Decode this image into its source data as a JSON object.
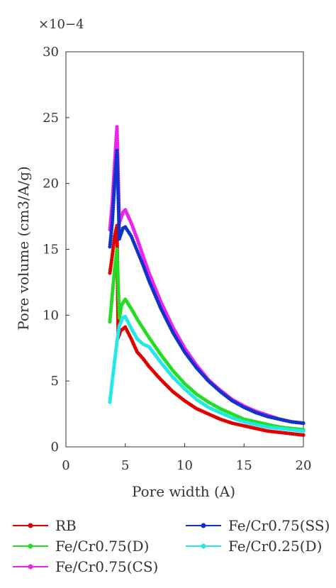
{
  "chart_data": {
    "type": "scatter",
    "title": "",
    "xlabel": "Pore width (A)",
    "ylabel": "Pore volume (cm3/A/g)",
    "multiplier": "×10−4",
    "xlim": [
      0,
      20
    ],
    "ylim": [
      0,
      30
    ],
    "x_ticks": [
      0,
      5,
      10,
      15,
      20
    ],
    "y_ticks": [
      0,
      5,
      10,
      15,
      20,
      25,
      30
    ],
    "grid": false,
    "legend_position": "bottom",
    "series": [
      {
        "name": "RB",
        "color": "#e00000",
        "points": [
          [
            3.7,
            13.2
          ],
          [
            3.9,
            14.5
          ],
          [
            4.1,
            16.0
          ],
          [
            4.3,
            16.8
          ],
          [
            4.4,
            8.3
          ],
          [
            4.6,
            8.8
          ],
          [
            5.0,
            9.1
          ],
          [
            5.5,
            8.2
          ],
          [
            6.0,
            7.2
          ],
          [
            6.5,
            6.7
          ],
          [
            7.0,
            6.1
          ],
          [
            8.0,
            5.1
          ],
          [
            9.0,
            4.2
          ],
          [
            10.0,
            3.5
          ],
          [
            11.0,
            2.9
          ],
          [
            12.0,
            2.5
          ],
          [
            13.0,
            2.1
          ],
          [
            14.0,
            1.8
          ],
          [
            15.0,
            1.6
          ],
          [
            16.0,
            1.4
          ],
          [
            17.0,
            1.2
          ],
          [
            18.0,
            1.1
          ],
          [
            19.0,
            1.0
          ],
          [
            20.0,
            0.9
          ]
        ]
      },
      {
        "name": "Fe/Cr0.75(D)",
        "color": "#22dd22",
        "points": [
          [
            3.7,
            9.5
          ],
          [
            3.9,
            11.5
          ],
          [
            4.1,
            13.5
          ],
          [
            4.3,
            15.0
          ],
          [
            4.5,
            9.8
          ],
          [
            4.7,
            10.8
          ],
          [
            5.0,
            11.2
          ],
          [
            5.5,
            10.5
          ],
          [
            6.0,
            9.7
          ],
          [
            6.5,
            9.0
          ],
          [
            7.0,
            8.3
          ],
          [
            8.0,
            7.0
          ],
          [
            9.0,
            5.8
          ],
          [
            10.0,
            4.8
          ],
          [
            11.0,
            4.0
          ],
          [
            12.0,
            3.4
          ],
          [
            13.0,
            2.9
          ],
          [
            14.0,
            2.5
          ],
          [
            15.0,
            2.1
          ],
          [
            16.0,
            1.9
          ],
          [
            17.0,
            1.7
          ],
          [
            18.0,
            1.5
          ],
          [
            19.0,
            1.4
          ],
          [
            20.0,
            1.3
          ]
        ]
      },
      {
        "name": "Fe/Cr0.75(CS)",
        "color": "#ee22ee",
        "points": [
          [
            3.7,
            16.5
          ],
          [
            3.9,
            18.5
          ],
          [
            4.1,
            21.5
          ],
          [
            4.3,
            24.3
          ],
          [
            4.5,
            17.0
          ],
          [
            4.8,
            17.8
          ],
          [
            5.0,
            18.0
          ],
          [
            5.5,
            17.0
          ],
          [
            6.0,
            15.8
          ],
          [
            6.5,
            14.5
          ],
          [
            7.0,
            13.2
          ],
          [
            8.0,
            11.0
          ],
          [
            9.0,
            9.1
          ],
          [
            10.0,
            7.5
          ],
          [
            11.0,
            6.2
          ],
          [
            12.0,
            5.1
          ],
          [
            13.0,
            4.3
          ],
          [
            14.0,
            3.6
          ],
          [
            15.0,
            3.1
          ],
          [
            16.0,
            2.7
          ],
          [
            17.0,
            2.4
          ],
          [
            18.0,
            2.1
          ],
          [
            19.0,
            1.9
          ],
          [
            20.0,
            1.8
          ]
        ]
      },
      {
        "name": "Fe/Cr0.75(SS)",
        "color": "#1133cc",
        "points": [
          [
            3.7,
            15.2
          ],
          [
            3.9,
            17.0
          ],
          [
            4.1,
            20.0
          ],
          [
            4.3,
            22.5
          ],
          [
            4.5,
            15.8
          ],
          [
            4.8,
            16.6
          ],
          [
            5.0,
            16.7
          ],
          [
            5.5,
            16.0
          ],
          [
            6.0,
            14.9
          ],
          [
            6.5,
            13.8
          ],
          [
            7.0,
            12.6
          ],
          [
            8.0,
            10.5
          ],
          [
            9.0,
            8.7
          ],
          [
            10.0,
            7.2
          ],
          [
            11.0,
            6.0
          ],
          [
            12.0,
            5.0
          ],
          [
            13.0,
            4.2
          ],
          [
            14.0,
            3.5
          ],
          [
            15.0,
            3.0
          ],
          [
            16.0,
            2.6
          ],
          [
            17.0,
            2.3
          ],
          [
            18.0,
            2.1
          ],
          [
            19.0,
            1.9
          ],
          [
            20.0,
            1.8
          ]
        ]
      },
      {
        "name": "Fe/Cr0.25(D)",
        "color": "#22e8e8",
        "points": [
          [
            3.7,
            3.4
          ],
          [
            3.9,
            5.0
          ],
          [
            4.1,
            6.5
          ],
          [
            4.3,
            8.0
          ],
          [
            4.5,
            9.2
          ],
          [
            4.8,
            9.8
          ],
          [
            5.0,
            9.9
          ],
          [
            5.5,
            9.0
          ],
          [
            6.0,
            8.2
          ],
          [
            6.5,
            7.8
          ],
          [
            7.0,
            7.6
          ],
          [
            8.0,
            6.4
          ],
          [
            9.0,
            5.3
          ],
          [
            10.0,
            4.4
          ],
          [
            11.0,
            3.6
          ],
          [
            12.0,
            3.0
          ],
          [
            13.0,
            2.6
          ],
          [
            14.0,
            2.2
          ],
          [
            15.0,
            1.9
          ],
          [
            16.0,
            1.7
          ],
          [
            17.0,
            1.5
          ],
          [
            18.0,
            1.4
          ],
          [
            19.0,
            1.3
          ],
          [
            20.0,
            1.2
          ]
        ]
      }
    ]
  }
}
